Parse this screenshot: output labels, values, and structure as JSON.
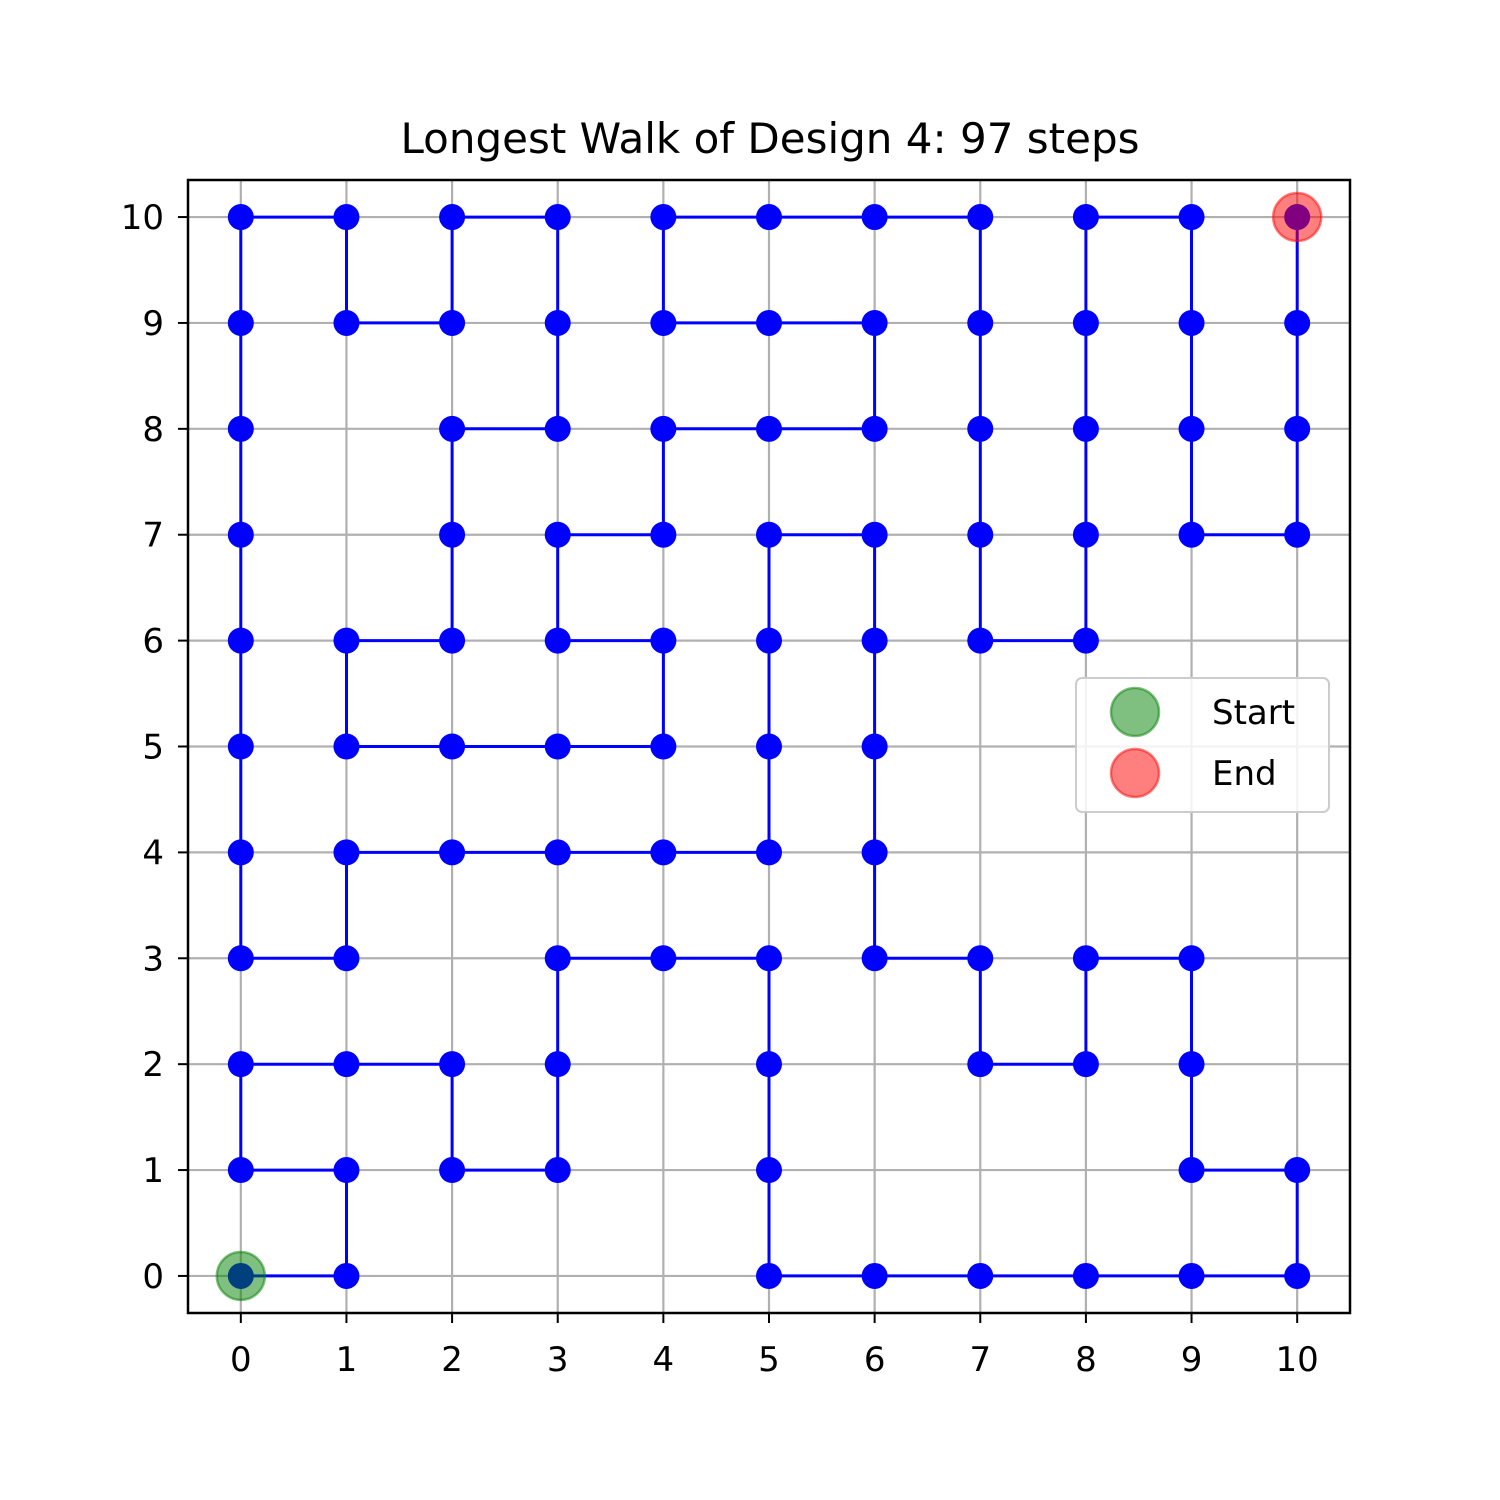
{
  "chart_data": {
    "type": "line",
    "title": "Longest Walk of Design 4: 97 steps",
    "xlabel": "",
    "ylabel": "",
    "xlim": [
      -0.5,
      10.5
    ],
    "ylim": [
      -0.35,
      10.35
    ],
    "xticks": [
      "0",
      "1",
      "2",
      "3",
      "4",
      "5",
      "6",
      "7",
      "8",
      "9",
      "10"
    ],
    "yticks": [
      "0",
      "1",
      "2",
      "3",
      "4",
      "5",
      "6",
      "7",
      "8",
      "9",
      "10"
    ],
    "grid": true,
    "legend_position": "center-right",
    "colors": {
      "path": "#0000ff",
      "start": "#008000",
      "end": "#ff0000"
    },
    "series": [
      {
        "name": "",
        "points": [
          [
            0,
            0
          ],
          [
            1,
            0
          ],
          [
            1,
            1
          ],
          [
            0,
            1
          ],
          [
            0,
            2
          ],
          [
            1,
            2
          ],
          [
            2,
            2
          ],
          [
            2,
            1
          ],
          [
            3,
            1
          ],
          [
            3,
            2
          ],
          [
            3,
            3
          ],
          [
            4,
            3
          ],
          [
            5,
            3
          ],
          [
            5,
            2
          ],
          [
            5,
            1
          ],
          [
            5,
            0
          ],
          [
            6,
            0
          ],
          [
            7,
            0
          ],
          [
            8,
            0
          ],
          [
            9,
            0
          ],
          [
            10,
            0
          ],
          [
            10,
            1
          ],
          [
            9,
            1
          ],
          [
            9,
            2
          ],
          [
            9,
            3
          ],
          [
            8,
            3
          ],
          [
            8,
            2
          ],
          [
            7,
            2
          ],
          [
            7,
            3
          ],
          [
            6,
            3
          ],
          [
            6,
            4
          ],
          [
            6,
            5
          ],
          [
            6,
            6
          ],
          [
            6,
            7
          ],
          [
            5,
            7
          ],
          [
            5,
            6
          ],
          [
            5,
            5
          ],
          [
            5,
            4
          ],
          [
            4,
            4
          ],
          [
            3,
            4
          ],
          [
            2,
            4
          ],
          [
            1,
            4
          ],
          [
            1,
            3
          ],
          [
            0,
            3
          ],
          [
            0,
            4
          ],
          [
            0,
            5
          ],
          [
            0,
            6
          ],
          [
            0,
            7
          ],
          [
            0,
            8
          ],
          [
            0,
            9
          ],
          [
            0,
            10
          ],
          [
            1,
            10
          ],
          [
            1,
            9
          ],
          [
            2,
            9
          ],
          [
            2,
            10
          ],
          [
            3,
            10
          ],
          [
            3,
            9
          ],
          [
            3,
            8
          ],
          [
            2,
            8
          ],
          [
            2,
            7
          ],
          [
            2,
            6
          ],
          [
            1,
            6
          ],
          [
            1,
            5
          ],
          [
            2,
            5
          ],
          [
            3,
            5
          ],
          [
            4,
            5
          ],
          [
            4,
            6
          ],
          [
            3,
            6
          ],
          [
            3,
            7
          ],
          [
            4,
            7
          ],
          [
            4,
            8
          ],
          [
            5,
            8
          ],
          [
            6,
            8
          ],
          [
            6,
            9
          ],
          [
            5,
            9
          ],
          [
            4,
            9
          ],
          [
            4,
            10
          ],
          [
            5,
            10
          ],
          [
            6,
            10
          ],
          [
            7,
            10
          ],
          [
            7,
            9
          ],
          [
            7,
            8
          ],
          [
            7,
            7
          ],
          [
            7,
            6
          ],
          [
            8,
            6
          ],
          [
            8,
            7
          ],
          [
            8,
            8
          ],
          [
            8,
            9
          ],
          [
            8,
            10
          ],
          [
            9,
            10
          ],
          [
            9,
            9
          ],
          [
            9,
            8
          ],
          [
            9,
            7
          ],
          [
            10,
            7
          ],
          [
            10,
            8
          ],
          [
            10,
            9
          ],
          [
            10,
            10
          ]
        ]
      }
    ],
    "markers": [
      {
        "name": "Start",
        "x": 0,
        "y": 0,
        "color": "#008000"
      },
      {
        "name": "End",
        "x": 10,
        "y": 10,
        "color": "#ff0000"
      }
    ]
  }
}
